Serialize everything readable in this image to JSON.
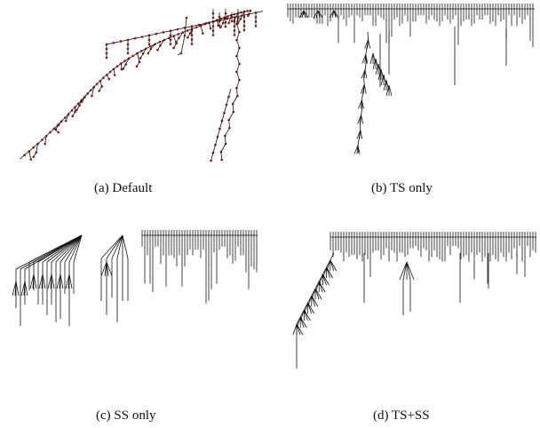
{
  "figure": {
    "panels": [
      {
        "id": "a",
        "caption": "(a)  Default",
        "style": "default"
      },
      {
        "id": "b",
        "caption": "(b)  TS only",
        "style": "ts"
      },
      {
        "id": "c",
        "caption": "(c)  SS only",
        "style": "ss"
      },
      {
        "id": "d",
        "caption": "(d)  TS+SS",
        "style": "tsss"
      }
    ],
    "colors": {
      "edge": "#111111",
      "node": "#7a1a1a"
    }
  }
}
